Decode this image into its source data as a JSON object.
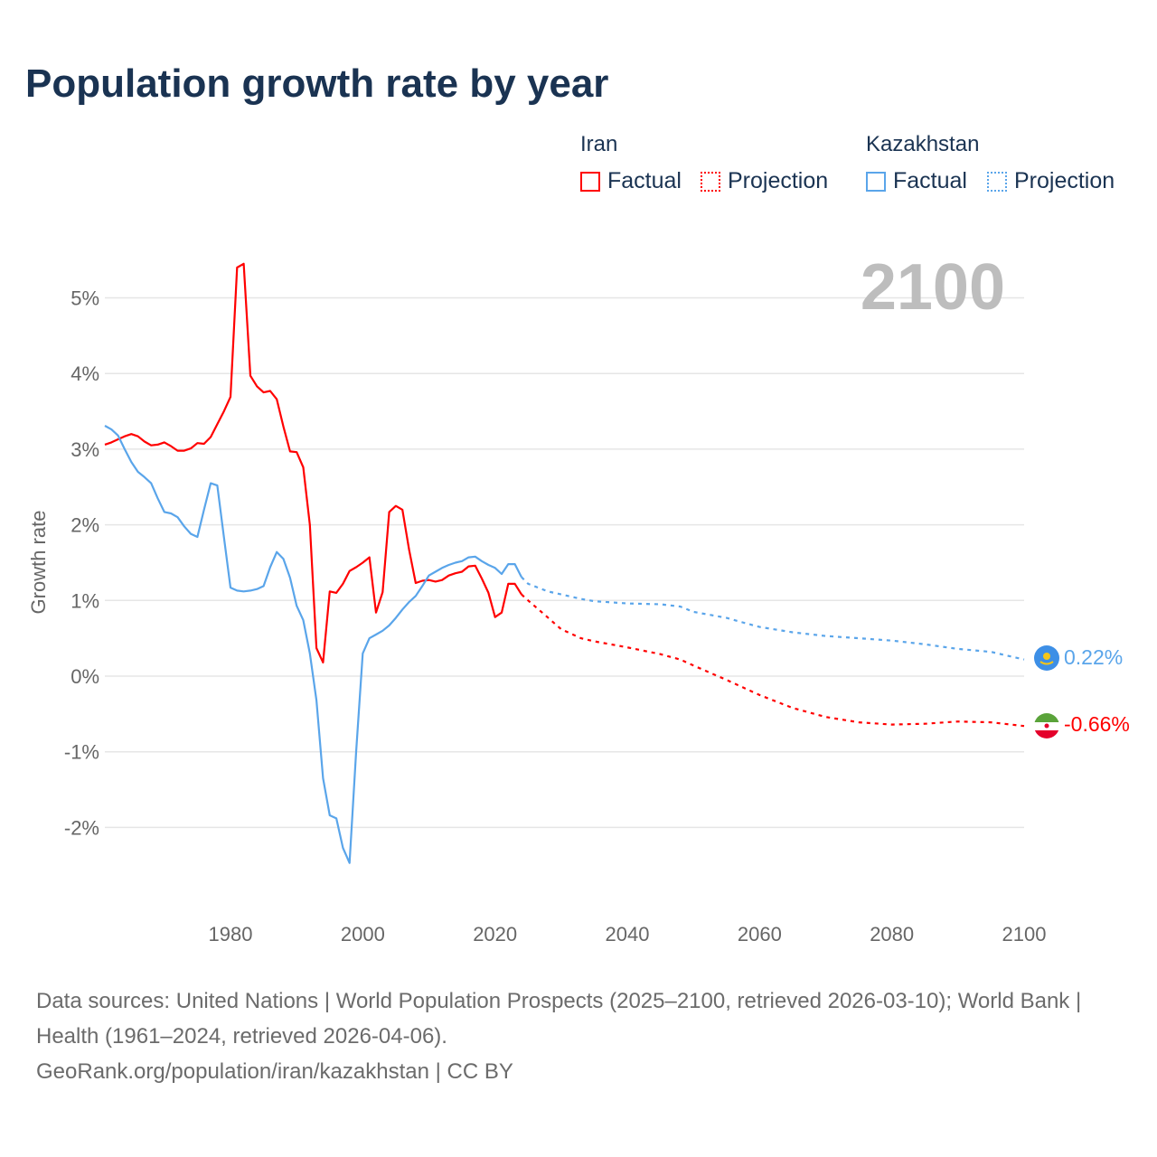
{
  "title": "Population growth rate by year",
  "legend": {
    "groups": [
      {
        "name": "Iran",
        "factual": "Factual",
        "projection": "Projection",
        "color": "#ff0000"
      },
      {
        "name": "Kazakhstan",
        "factual": "Factual",
        "projection": "Projection",
        "color": "#5aa5ea"
      }
    ]
  },
  "year_label": "2100",
  "end_labels": {
    "kazakhstan": "0.22%",
    "iran": "-0.66%"
  },
  "footer": {
    "sources": "Data sources: United Nations | World Population Prospects (2025–2100, retrieved 2026-03-10); World Bank | Health (1961–2024, retrieved 2026-04-06).",
    "credit": "GeoRank.org/population/iran/kazakhstan | CC BY"
  },
  "chart_data": {
    "type": "line",
    "title": "Population growth rate by year",
    "xlabel": "",
    "ylabel": "Growth rate",
    "xlim": [
      1961,
      2100
    ],
    "ylim": [
      -3,
      5.6
    ],
    "xticks": [
      1980,
      2000,
      2020,
      2040,
      2060,
      2080,
      2100
    ],
    "xtick_labels": [
      "1980",
      "2000",
      "2020",
      "2040",
      "2060",
      "2080",
      "2100"
    ],
    "yticks": [
      -2,
      -1,
      0,
      1,
      2,
      3,
      4,
      5
    ],
    "ytick_labels": [
      "-2%",
      "-1%",
      "0%",
      "1%",
      "2%",
      "3%",
      "4%",
      "5%"
    ],
    "grid": true,
    "legend_position": "top-right",
    "series": [
      {
        "name": "Iran Factual",
        "color": "#ff0000",
        "dashed": false,
        "x_start": 1961,
        "values": [
          3.06,
          3.09,
          3.13,
          3.17,
          3.2,
          3.17,
          3.1,
          3.05,
          3.06,
          3.09,
          3.04,
          2.98,
          2.98,
          3.01,
          3.08,
          3.07,
          3.16,
          3.33,
          3.5,
          3.69,
          5.4,
          5.45,
          3.97,
          3.83,
          3.75,
          3.77,
          3.66,
          3.3,
          2.97,
          2.96,
          2.76,
          2.0,
          0.37,
          0.18,
          1.12,
          1.1,
          1.22,
          1.39,
          1.44,
          1.5,
          1.57,
          0.84,
          1.11,
          2.17,
          2.25,
          2.2,
          1.67,
          1.23,
          1.26,
          1.27,
          1.25,
          1.27,
          1.33,
          1.36,
          1.38,
          1.45,
          1.46,
          1.29,
          1.1,
          0.78,
          0.84,
          1.22,
          1.22,
          1.08
        ]
      },
      {
        "name": "Kazakhstan Factual",
        "color": "#5aa5ea",
        "dashed": false,
        "x_start": 1961,
        "values": [
          3.31,
          3.26,
          3.18,
          3.0,
          2.83,
          2.7,
          2.63,
          2.55,
          2.35,
          2.17,
          2.15,
          2.1,
          1.98,
          1.88,
          1.84,
          2.2,
          2.55,
          2.52,
          1.84,
          1.17,
          1.13,
          1.12,
          1.13,
          1.15,
          1.19,
          1.44,
          1.64,
          1.55,
          1.3,
          0.93,
          0.74,
          0.3,
          -0.32,
          -1.35,
          -1.84,
          -1.88,
          -2.27,
          -2.47,
          -1.0,
          0.3,
          0.5,
          0.55,
          0.6,
          0.67,
          0.77,
          0.88,
          0.98,
          1.06,
          1.19,
          1.33,
          1.38,
          1.43,
          1.47,
          1.5,
          1.52,
          1.57,
          1.58,
          1.52,
          1.47,
          1.43,
          1.35,
          1.48,
          1.48,
          1.31
        ]
      },
      {
        "name": "Iran Projection",
        "color": "#ff0000",
        "dashed": true,
        "x": [
          2024,
          2025,
          2027,
          2030,
          2033,
          2035,
          2040,
          2045,
          2048,
          2050,
          2055,
          2060,
          2065,
          2070,
          2075,
          2080,
          2085,
          2090,
          2095,
          2100
        ],
        "values": [
          1.08,
          1.0,
          0.85,
          0.62,
          0.5,
          0.46,
          0.38,
          0.29,
          0.22,
          0.14,
          -0.05,
          -0.25,
          -0.42,
          -0.54,
          -0.61,
          -0.64,
          -0.63,
          -0.6,
          -0.61,
          -0.66
        ]
      },
      {
        "name": "Kazakhstan Projection",
        "color": "#5aa5ea",
        "dashed": true,
        "x": [
          2024,
          2025,
          2028,
          2030,
          2033,
          2035,
          2040,
          2045,
          2048,
          2050,
          2055,
          2057,
          2060,
          2065,
          2070,
          2075,
          2080,
          2085,
          2090,
          2095,
          2100
        ],
        "values": [
          1.31,
          1.22,
          1.12,
          1.08,
          1.02,
          0.99,
          0.96,
          0.95,
          0.92,
          0.85,
          0.77,
          0.72,
          0.65,
          0.58,
          0.53,
          0.5,
          0.47,
          0.42,
          0.36,
          0.32,
          0.22
        ]
      }
    ]
  }
}
